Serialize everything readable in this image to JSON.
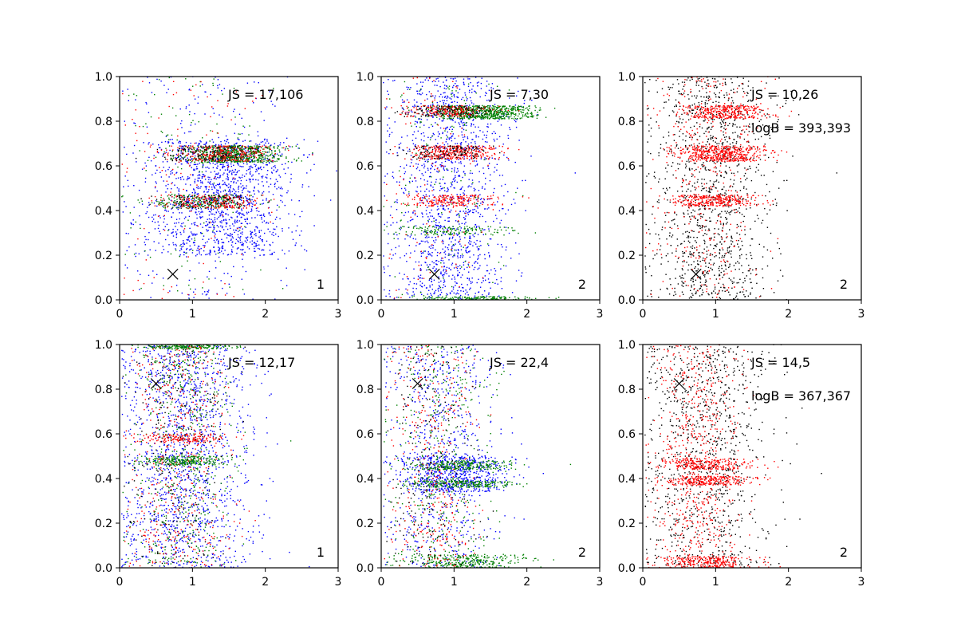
{
  "figure": {
    "background": "#ffffff"
  },
  "chart_data": [
    {
      "type": "scatter",
      "panel_label": "1",
      "annotations": [
        "JS = 17,106"
      ],
      "xlim": [
        0,
        3
      ],
      "ylim": [
        0,
        1
      ],
      "xticks": [
        "0",
        "1",
        "2",
        "3"
      ],
      "yticks": [
        "0.0",
        "0.2",
        "0.4",
        "0.6",
        "0.8",
        "1.0"
      ],
      "marker": {
        "x": 0.73,
        "y": 0.115,
        "symbol": "x"
      },
      "series": [
        {
          "color": "#0000ff",
          "clusters": [
            {
              "xc": 1.4,
              "xs": 0.5,
              "y": [
                0.2,
                0.72
              ],
              "n": 1300
            },
            {
              "xc": 1.1,
              "xs": 0.6,
              "y": [
                0.0,
                1.0
              ],
              "n": 300
            }
          ]
        },
        {
          "color": "#008000",
          "clusters": [
            {
              "xc": 1.55,
              "xs": 0.35,
              "y": [
                0.615,
                0.69
              ],
              "n": 650
            },
            {
              "xc": 1.2,
              "xs": 0.35,
              "y": [
                0.41,
                0.47
              ],
              "n": 230
            },
            {
              "xc": 1.0,
              "xs": 0.5,
              "y": [
                0.0,
                1.0
              ],
              "n": 120
            }
          ]
        },
        {
          "color": "#ff0000",
          "clusters": [
            {
              "xc": 1.4,
              "xs": 0.35,
              "y": [
                0.62,
                0.69
              ],
              "n": 280
            },
            {
              "xc": 1.25,
              "xs": 0.35,
              "y": [
                0.41,
                0.47
              ],
              "n": 200
            },
            {
              "xc": 0.9,
              "xs": 0.5,
              "y": [
                0.0,
                1.0
              ],
              "n": 120
            }
          ]
        },
        {
          "color": "#000000",
          "clusters": [
            {
              "xc": 1.3,
              "xs": 0.35,
              "y": [
                0.62,
                0.69
              ],
              "n": 150
            },
            {
              "xc": 1.2,
              "xs": 0.35,
              "y": [
                0.41,
                0.47
              ],
              "n": 100
            }
          ]
        }
      ]
    },
    {
      "type": "scatter",
      "panel_label": "2",
      "annotations": [
        "JS = 7,30"
      ],
      "xlim": [
        0,
        3
      ],
      "ylim": [
        0,
        1
      ],
      "xticks": [
        "0",
        "1",
        "2",
        "3"
      ],
      "yticks": [
        "0.0",
        "0.2",
        "0.4",
        "0.6",
        "0.8",
        "1.0"
      ],
      "marker": {
        "x": 0.73,
        "y": 0.115,
        "symbol": "x"
      },
      "series": [
        {
          "color": "#0000ff",
          "clusters": [
            {
              "xc": 0.95,
              "xs": 0.4,
              "y": [
                0.0,
                1.0
              ],
              "n": 1400
            }
          ]
        },
        {
          "color": "#008000",
          "clusters": [
            {
              "xc": 1.4,
              "xs": 0.35,
              "y": [
                0.81,
                0.87
              ],
              "n": 650
            },
            {
              "xc": 1.0,
              "xs": 0.4,
              "y": [
                0.29,
                0.33
              ],
              "n": 150
            },
            {
              "xc": 1.3,
              "xs": 0.4,
              "y": [
                0.0,
                0.015
              ],
              "n": 150
            },
            {
              "xc": 0.9,
              "xs": 0.4,
              "y": [
                0.0,
                1.0
              ],
              "n": 150
            }
          ]
        },
        {
          "color": "#ff0000",
          "clusters": [
            {
              "xc": 1.0,
              "xs": 0.3,
              "y": [
                0.63,
                0.69
              ],
              "n": 350
            },
            {
              "xc": 0.9,
              "xs": 0.3,
              "y": [
                0.82,
                0.87
              ],
              "n": 200
            },
            {
              "xc": 0.95,
              "xs": 0.3,
              "y": [
                0.42,
                0.47
              ],
              "n": 200
            },
            {
              "xc": 0.8,
              "xs": 0.4,
              "y": [
                0.0,
                1.0
              ],
              "n": 120
            }
          ]
        },
        {
          "color": "#000000",
          "clusters": [
            {
              "xc": 0.9,
              "xs": 0.3,
              "y": [
                0.63,
                0.69
              ],
              "n": 120
            },
            {
              "xc": 0.9,
              "xs": 0.3,
              "y": [
                0.82,
                0.87
              ],
              "n": 120
            }
          ]
        }
      ]
    },
    {
      "type": "scatter",
      "panel_label": "2",
      "annotations": [
        "JS = 10,26",
        "logB = 393,393"
      ],
      "xlim": [
        0,
        3
      ],
      "ylim": [
        0,
        1
      ],
      "xticks": [
        "0",
        "1",
        "2",
        "3"
      ],
      "yticks": [
        "0.0",
        "0.2",
        "0.4",
        "0.6",
        "0.8",
        "1.0"
      ],
      "marker": {
        "x": 0.73,
        "y": 0.115,
        "symbol": "x"
      },
      "series": [
        {
          "color": "#000000",
          "clusters": [
            {
              "xc": 0.95,
              "xs": 0.4,
              "y": [
                0.0,
                1.0
              ],
              "n": 1200
            }
          ]
        },
        {
          "color": "#ff0000",
          "clusters": [
            {
              "xc": 1.1,
              "xs": 0.3,
              "y": [
                0.62,
                0.69
              ],
              "n": 500
            },
            {
              "xc": 1.1,
              "xs": 0.3,
              "y": [
                0.81,
                0.87
              ],
              "n": 350
            },
            {
              "xc": 1.0,
              "xs": 0.3,
              "y": [
                0.42,
                0.47
              ],
              "n": 300
            },
            {
              "xc": 0.9,
              "xs": 0.35,
              "y": [
                0.0,
                1.0
              ],
              "n": 350
            }
          ]
        }
      ]
    },
    {
      "type": "scatter",
      "panel_label": "1",
      "annotations": [
        "JS = 12,17"
      ],
      "xlim": [
        0,
        3
      ],
      "ylim": [
        0,
        1
      ],
      "xticks": [
        "0",
        "1",
        "2",
        "3"
      ],
      "yticks": [
        "0.0",
        "0.2",
        "0.4",
        "0.6",
        "0.8",
        "1.0"
      ],
      "marker": {
        "x": 0.5,
        "y": 0.825,
        "symbol": "x"
      },
      "series": [
        {
          "color": "#0000ff",
          "clusters": [
            {
              "xc": 0.9,
              "xs": 0.45,
              "y": [
                0.0,
                1.0
              ],
              "n": 1500
            }
          ]
        },
        {
          "color": "#008000",
          "clusters": [
            {
              "xc": 0.85,
              "xs": 0.35,
              "y": [
                0.0,
                1.0
              ],
              "n": 500
            },
            {
              "xc": 0.9,
              "xs": 0.3,
              "y": [
                0.46,
                0.5
              ],
              "n": 250
            },
            {
              "xc": 0.9,
              "xs": 0.3,
              "y": [
                0.98,
                1.0
              ],
              "n": 200
            }
          ]
        },
        {
          "color": "#ff0000",
          "clusters": [
            {
              "xc": 0.8,
              "xs": 0.35,
              "y": [
                0.0,
                1.0
              ],
              "n": 450
            },
            {
              "xc": 0.85,
              "xs": 0.3,
              "y": [
                0.56,
                0.6
              ],
              "n": 150
            }
          ]
        },
        {
          "color": "#000000",
          "clusters": [
            {
              "xc": 0.8,
              "xs": 0.35,
              "y": [
                0.0,
                1.0
              ],
              "n": 250
            }
          ]
        }
      ]
    },
    {
      "type": "scatter",
      "panel_label": "2",
      "annotations": [
        "JS = 22,4"
      ],
      "xlim": [
        0,
        3
      ],
      "ylim": [
        0,
        1
      ],
      "xticks": [
        "0",
        "1",
        "2",
        "3"
      ],
      "yticks": [
        "0.0",
        "0.2",
        "0.4",
        "0.6",
        "0.8",
        "1.0"
      ],
      "marker": {
        "x": 0.5,
        "y": 0.825,
        "symbol": "x"
      },
      "series": [
        {
          "color": "#0000ff",
          "clusters": [
            {
              "xc": 0.8,
              "xs": 0.4,
              "y": [
                0.0,
                1.0
              ],
              "n": 700
            },
            {
              "xc": 1.05,
              "xs": 0.35,
              "y": [
                0.34,
                0.5
              ],
              "n": 600
            }
          ]
        },
        {
          "color": "#008000",
          "clusters": [
            {
              "xc": 0.8,
              "xs": 0.35,
              "y": [
                0.0,
                1.0
              ],
              "n": 400
            },
            {
              "xc": 1.1,
              "xs": 0.35,
              "y": [
                0.44,
                0.48
              ],
              "n": 250
            },
            {
              "xc": 1.1,
              "xs": 0.35,
              "y": [
                0.36,
                0.39
              ],
              "n": 250
            },
            {
              "xc": 1.2,
              "xs": 0.4,
              "y": [
                0.0,
                0.06
              ],
              "n": 300
            }
          ]
        },
        {
          "color": "#ff0000",
          "clusters": [
            {
              "xc": 0.7,
              "xs": 0.3,
              "y": [
                0.0,
                1.0
              ],
              "n": 350
            }
          ]
        },
        {
          "color": "#000000",
          "clusters": [
            {
              "xc": 0.7,
              "xs": 0.3,
              "y": [
                0.0,
                1.0
              ],
              "n": 200
            }
          ]
        }
      ]
    },
    {
      "type": "scatter",
      "panel_label": "2",
      "annotations": [
        "JS = 14,5",
        "logB = 367,367"
      ],
      "xlim": [
        0,
        3
      ],
      "ylim": [
        0,
        1
      ],
      "xticks": [
        "0",
        "1",
        "2",
        "3"
      ],
      "yticks": [
        "0.0",
        "0.2",
        "0.4",
        "0.6",
        "0.8",
        "1.0"
      ],
      "marker": {
        "x": 0.5,
        "y": 0.825,
        "symbol": "x"
      },
      "series": [
        {
          "color": "#000000",
          "clusters": [
            {
              "xc": 0.85,
              "xs": 0.45,
              "y": [
                0.0,
                1.0
              ],
              "n": 1000
            }
          ]
        },
        {
          "color": "#ff0000",
          "clusters": [
            {
              "xc": 0.75,
              "xs": 0.3,
              "y": [
                0.0,
                1.0
              ],
              "n": 600
            },
            {
              "xc": 0.9,
              "xs": 0.3,
              "y": [
                0.44,
                0.49
              ],
              "n": 250
            },
            {
              "xc": 0.9,
              "xs": 0.3,
              "y": [
                0.37,
                0.41
              ],
              "n": 250
            },
            {
              "xc": 0.9,
              "xs": 0.3,
              "y": [
                0.0,
                0.05
              ],
              "n": 250
            }
          ]
        }
      ]
    }
  ]
}
